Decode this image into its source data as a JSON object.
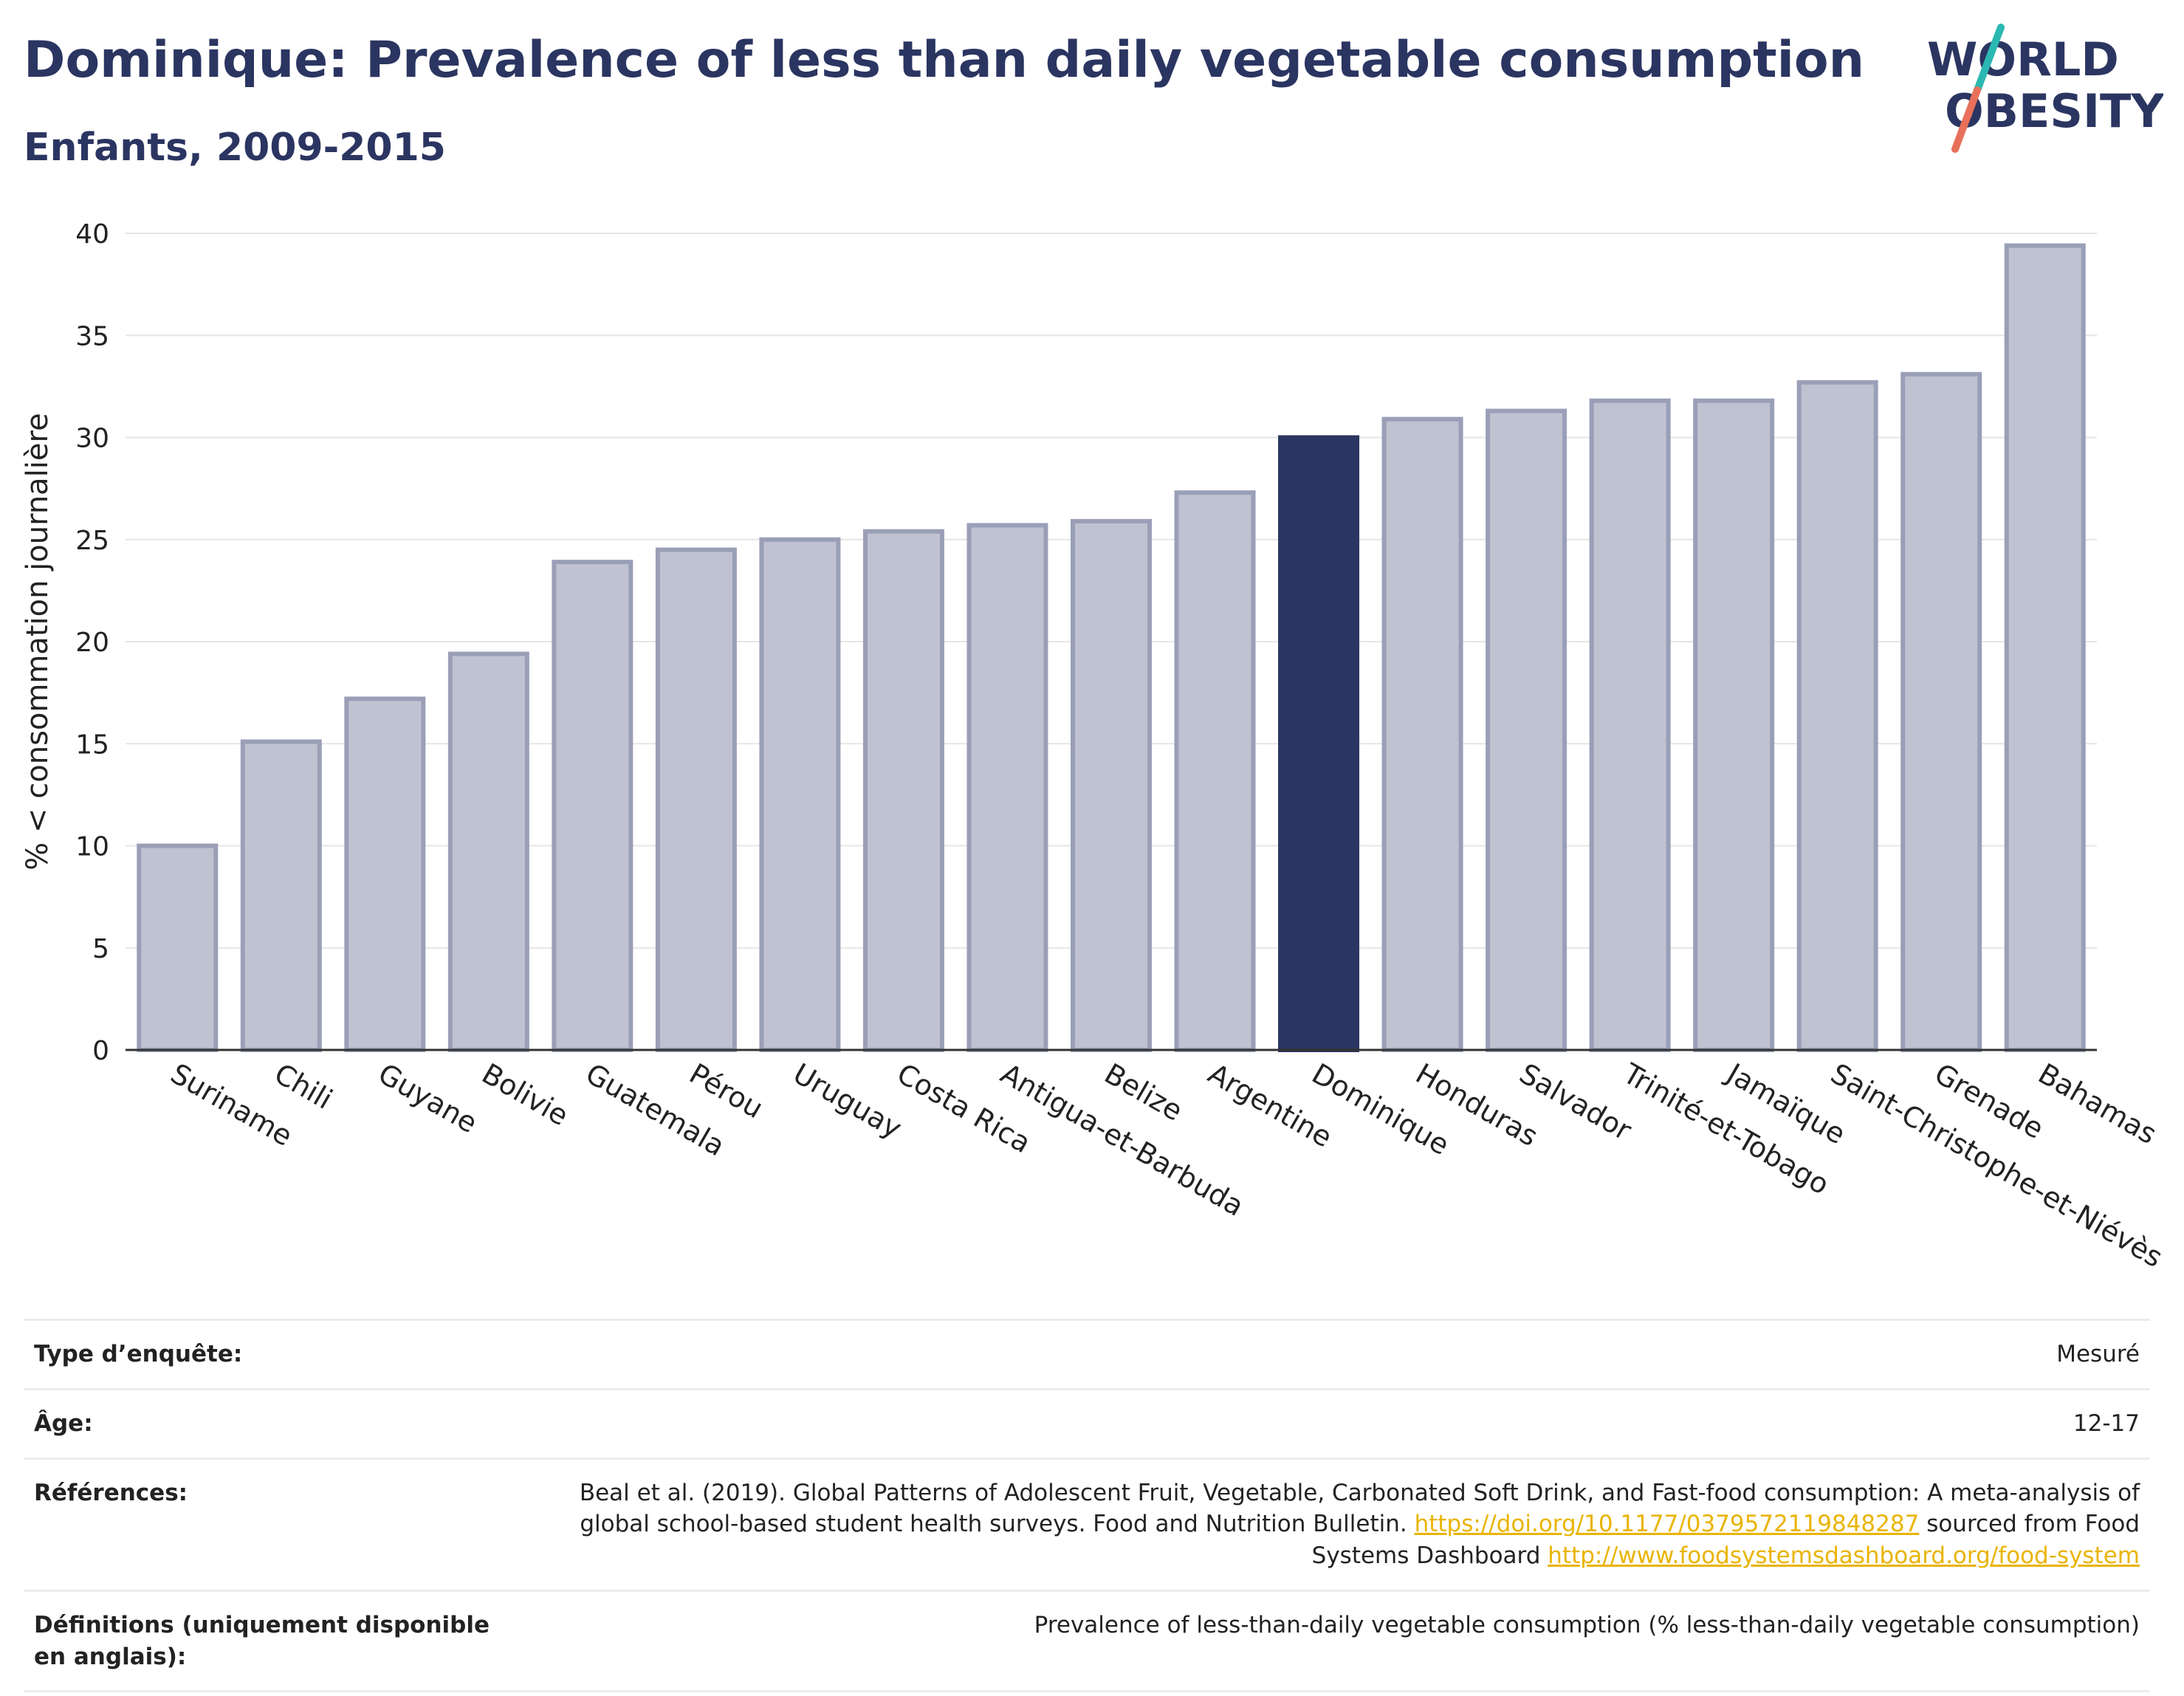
{
  "header": {
    "title": "Dominique: Prevalence of less than daily vegetable consumption",
    "subtitle": "Enfants, 2009-2015"
  },
  "logo": {
    "line1": "WORLD",
    "line2": "OBESITY",
    "colors": {
      "text": "#2b3561",
      "slash_top": "#2bb8b2",
      "slash_bottom": "#e8705a"
    }
  },
  "colors": {
    "highlight": "#2b3561",
    "bar_fill": "#bfc2d0",
    "bar_stroke": "#9a9fb8",
    "link": "#e9b400"
  },
  "chart_data": {
    "type": "bar",
    "title": "Dominique: Prevalence of less than daily vegetable consumption",
    "subtitle": "Enfants, 2009-2015",
    "xlabel": "",
    "ylabel": "% < consommation journalière",
    "ylim": [
      0,
      40
    ],
    "yticks": [
      0,
      5,
      10,
      15,
      20,
      25,
      30,
      35,
      40
    ],
    "grid": true,
    "highlight": "Dominique",
    "categories": [
      "Suriname",
      "Chili",
      "Guyane",
      "Bolivie",
      "Guatemala",
      "Pérou",
      "Uruguay",
      "Costa Rica",
      "Antigua-et-Barbuda",
      "Belize",
      "Argentine",
      "Dominique",
      "Honduras",
      "Salvador",
      "Trinité-et-Tobago",
      "Jamaïque",
      "Saint-Christophe-et-Niévès",
      "Grenade",
      "Bahamas"
    ],
    "values": [
      10.0,
      15.1,
      17.2,
      19.4,
      23.9,
      24.5,
      25.0,
      25.4,
      25.7,
      25.9,
      27.3,
      30.0,
      30.9,
      31.3,
      31.8,
      31.8,
      32.7,
      33.1,
      39.4
    ]
  },
  "info": {
    "rows": [
      {
        "key": "Type d’enquête:",
        "value": "Mesuré"
      },
      {
        "key": "Âge:",
        "value": "12-17"
      },
      {
        "key": "Références:",
        "value_text1": "Beal et al. (2019). Global Patterns of Adolescent Fruit, Vegetable, Carbonated Soft Drink, and Fast-food consumption: A meta-analysis of global school-based student health surveys. Food and Nutrition Bulletin.",
        "link1": "https://doi.org/10.1177/0379572119848287",
        "value_text2": "sourced from Food Systems Dashboard",
        "link2": "http://www.foodsystemsdashboard.org/food-system"
      },
      {
        "key": "Définitions (uniquement disponible en anglais):",
        "value": "Prevalence of less-than-daily vegetable consumption (% less-than-daily vegetable consumption)"
      }
    ]
  }
}
